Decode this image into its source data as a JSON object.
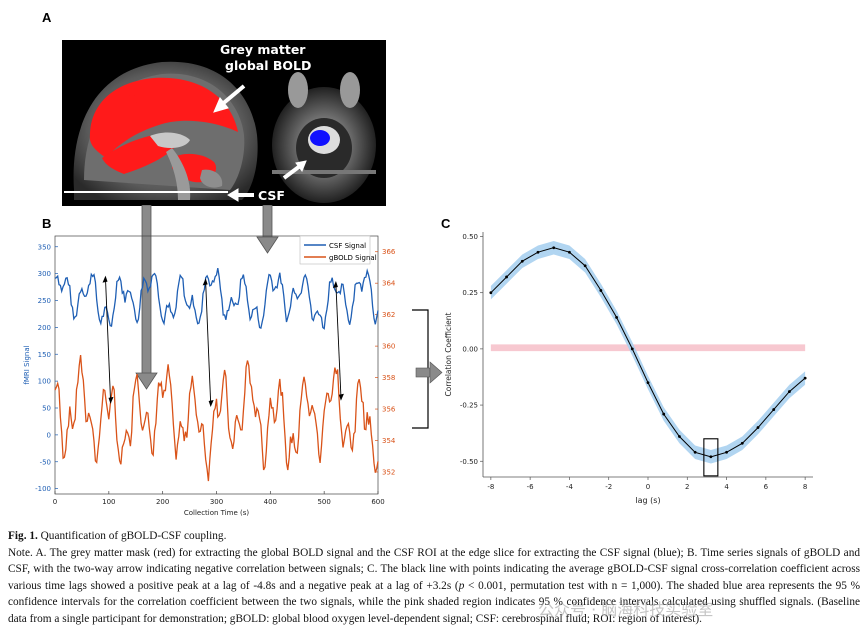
{
  "panels": {
    "a": "A",
    "b": "B",
    "c": "C"
  },
  "panel_a": {
    "label_gm": [
      "Grey matter",
      "global BOLD"
    ],
    "label_csf": "CSF"
  },
  "colors": {
    "csf": "#1f5fb4",
    "gbold": "#d95319",
    "ci_blue": "#a9d0f0",
    "ci_pink": "#f7c8d0",
    "gm_red": "#ff1a1a",
    "csf_roi": "#1010ff"
  },
  "chart_data": [
    {
      "type": "line",
      "panel": "B",
      "xlabel": "Collection Time (s)",
      "ylabel": "fMRI Signal",
      "xlim": [
        0,
        600
      ],
      "xticks": [
        0,
        100,
        200,
        300,
        400,
        500,
        600
      ],
      "ylim_left": [
        -110,
        370
      ],
      "yticks_left": [
        -100,
        -50,
        0,
        50,
        100,
        150,
        200,
        250,
        300,
        350
      ],
      "ylim_right": [
        350.6,
        367.0
      ],
      "yticks_right": [
        352,
        354,
        356,
        358,
        360,
        362,
        364,
        366
      ],
      "legend": "top-right",
      "series": [
        {
          "name": "CSF Signal",
          "axis": "left",
          "approx_mean": 255,
          "approx_range": [
            170,
            350
          ]
        },
        {
          "name": "gBOLD Signal",
          "axis": "right",
          "approx_mean": 355.5,
          "approx_range": [
            350.8,
            360
          ]
        }
      ]
    },
    {
      "type": "line",
      "panel": "C",
      "xlabel": "lag (s)",
      "ylabel": "Correlation Coefficient",
      "xlim": [
        -8.4,
        8.4
      ],
      "xticks": [
        -8,
        -6,
        -4,
        -2,
        0,
        2,
        4,
        6,
        8
      ],
      "ylim": [
        -0.57,
        0.52
      ],
      "yticks": [
        -0.5,
        -0.25,
        0,
        0.25,
        0.5
      ],
      "ytick_labels": [
        "-0.50",
        "-0.25",
        "0.00",
        "0.25",
        "0.50"
      ],
      "lag": [
        -8,
        -7.2,
        -6.4,
        -5.6,
        -4.8,
        -4.0,
        -3.2,
        -2.4,
        -1.6,
        -0.8,
        0,
        0.8,
        1.6,
        2.4,
        3.2,
        4.0,
        4.8,
        5.6,
        6.4,
        7.2,
        8
      ],
      "mean": [
        0.25,
        0.32,
        0.39,
        0.43,
        0.45,
        0.43,
        0.37,
        0.26,
        0.14,
        0.0,
        -0.15,
        -0.29,
        -0.39,
        -0.46,
        -0.48,
        -0.46,
        -0.42,
        -0.35,
        -0.27,
        -0.19,
        -0.13
      ],
      "ci_half_width": [
        0.03,
        0.03,
        0.03,
        0.03,
        0.03,
        0.03,
        0.03,
        0.03,
        0.03,
        0.03,
        0.03,
        0.03,
        0.03,
        0.03,
        0.03,
        0.03,
        0.03,
        0.03,
        0.03,
        0.03,
        0.03
      ],
      "shuffled_band": [
        -0.01,
        0.02
      ],
      "highlight_lag": 3.2
    }
  ],
  "caption": {
    "fig_label": "Fig. 1.",
    "title": "Quantification of gBOLD-CSF coupling.",
    "body_1": "Note. A. The grey matter mask (red) for extracting the global BOLD signal and the CSF ROI at the edge slice for extracting the CSF signal (blue); B. Time series signals of gBOLD and CSF, with the two-way arrow indicating negative correlation between signals; C. The black line with points indicating the average gBOLD-CSF signal cross-correlation coefficient across various time lags showed a positive peak at a lag of -4.8s and a negative peak at a lag of +3.2s (",
    "p_italic": "p",
    "body_2": " < 0.001, permutation test with n = 1,000). The shaded blue area represents the 95 % confidence intervals for the correlation coefficient between the two signals, while the pink shaded region indicates 95 % confidence intervals calculated using shuffled signals. (Baseline data from a single participant for demonstration; gBOLD: global blood oxygen level-dependent signal; CSF: cerebrospinal fluid; ROI: region of interest)."
  },
  "watermark": "公众号 · 脑海科技实验室"
}
